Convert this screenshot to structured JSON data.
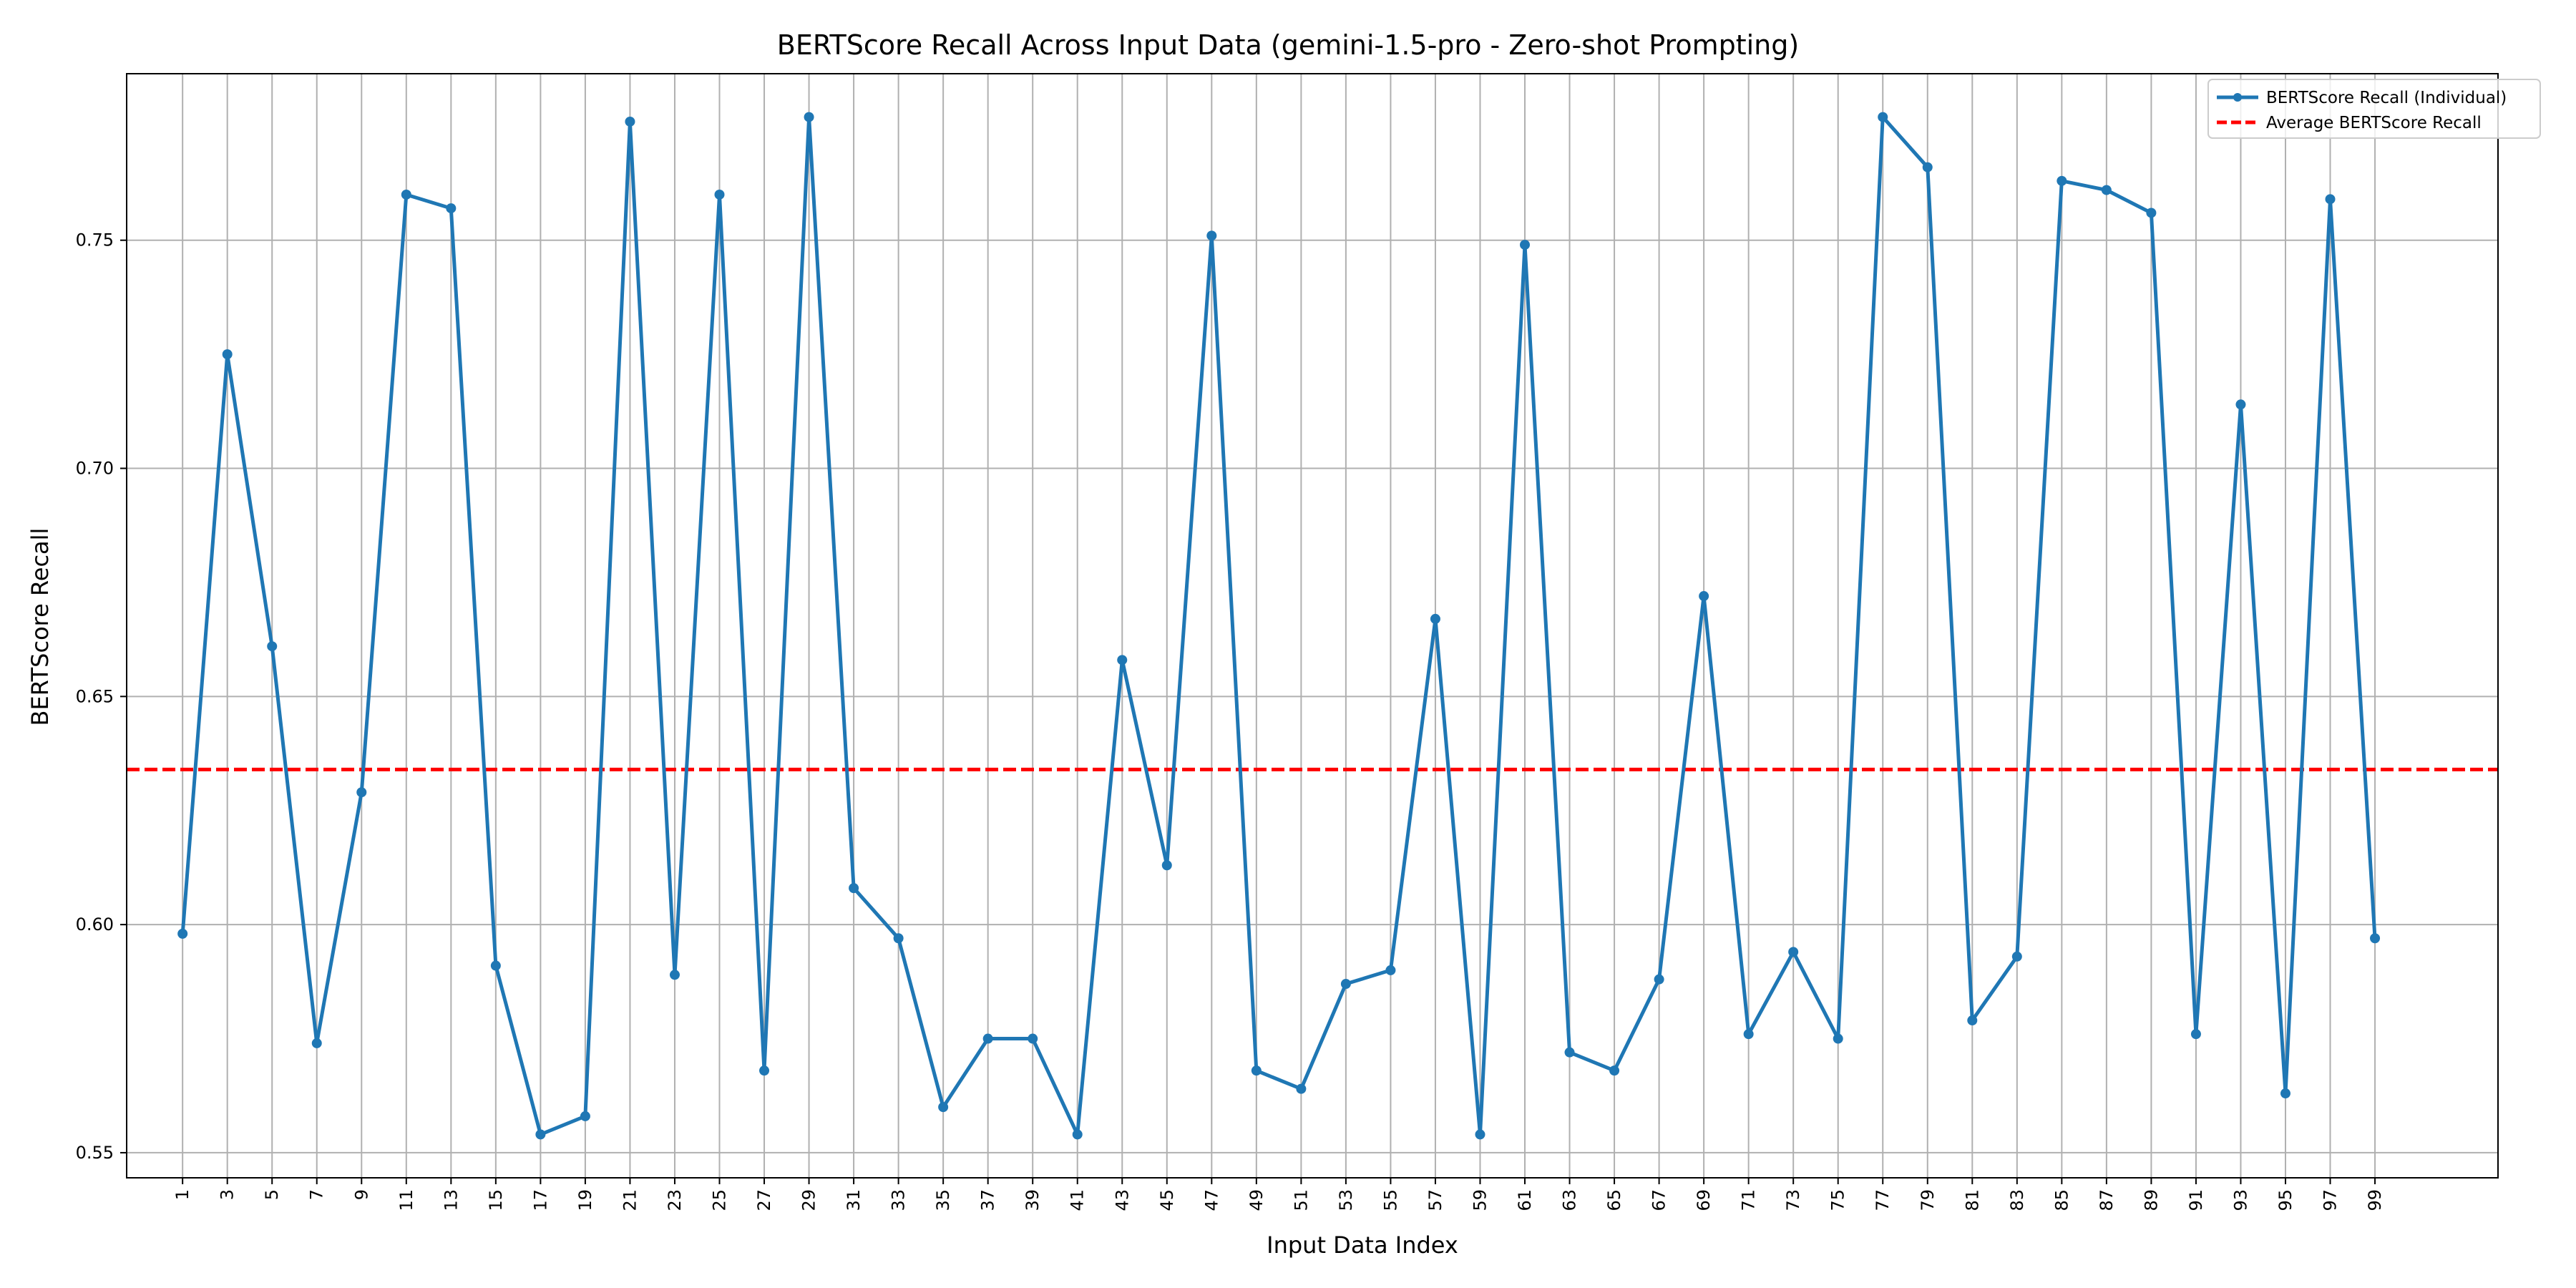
{
  "chart_data": {
    "type": "line",
    "title": "BERTScore Recall Across Input Data (gemini-1.5-pro - Zero-shot Prompting)",
    "xlabel": "Input Data Index",
    "ylabel": "BERTScore Recall",
    "x": [
      1,
      3,
      5,
      7,
      9,
      11,
      13,
      15,
      17,
      19,
      21,
      23,
      25,
      27,
      29,
      31,
      33,
      35,
      37,
      39,
      41,
      43,
      45,
      47,
      49,
      51,
      53,
      55,
      57,
      59,
      61,
      63,
      65,
      67,
      69,
      71,
      73,
      75,
      77,
      79,
      81,
      83,
      85,
      87,
      89,
      91,
      93,
      95,
      97,
      99
    ],
    "series": [
      {
        "name": "BERTScore Recall (Individual)",
        "color": "#1f77b4",
        "values": [
          0.598,
          0.725,
          0.661,
          0.574,
          0.629,
          0.76,
          0.757,
          0.591,
          0.554,
          0.558,
          0.776,
          0.589,
          0.76,
          0.568,
          0.777,
          0.608,
          0.597,
          0.56,
          0.575,
          0.575,
          0.554,
          0.658,
          0.613,
          0.751,
          0.568,
          0.564,
          0.587,
          0.59,
          0.667,
          0.554,
          0.749,
          0.572,
          0.568,
          0.588,
          0.672,
          0.576,
          0.594,
          0.575,
          0.777,
          0.766,
          0.579,
          0.593,
          0.763,
          0.761,
          0.756,
          0.576,
          0.714,
          0.563,
          0.759,
          0.597
        ]
      }
    ],
    "average": {
      "name": "Average BERTScore Recall",
      "value": 0.634,
      "color": "#ff0000"
    },
    "xticks": [
      1,
      3,
      5,
      7,
      9,
      11,
      13,
      15,
      17,
      19,
      21,
      23,
      25,
      27,
      29,
      31,
      33,
      35,
      37,
      39,
      41,
      43,
      45,
      47,
      49,
      51,
      53,
      55,
      57,
      59,
      61,
      63,
      65,
      67,
      69,
      71,
      73,
      75,
      77,
      79,
      81,
      83,
      85,
      87,
      89,
      91,
      93,
      95,
      97,
      99
    ],
    "yticks": [
      0.55,
      0.6,
      0.65,
      0.7,
      0.75
    ],
    "ytick_labels": [
      "0.55",
      "0.60",
      "0.65",
      "0.70",
      "0.75"
    ],
    "xlim": [
      -1.5,
      104.5
    ],
    "ylim": [
      0.5445,
      0.7865
    ],
    "grid": true,
    "legend_position": "top-right"
  }
}
